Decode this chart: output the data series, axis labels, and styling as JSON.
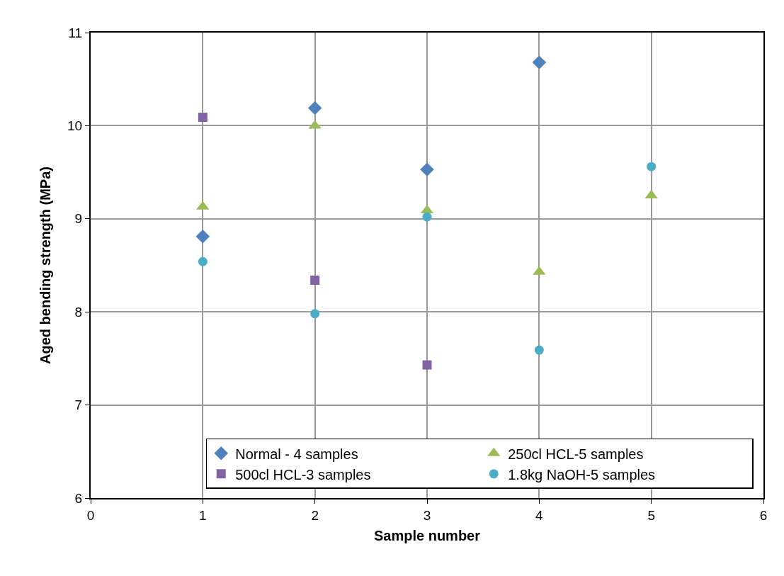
{
  "chart_data": {
    "type": "scatter",
    "xlabel": "Sample number",
    "ylabel": "Aged bending strength (MPa)",
    "xlim": [
      0,
      6
    ],
    "xticks": [
      0,
      1,
      2,
      3,
      4,
      5,
      6
    ],
    "ylim": [
      6,
      11
    ],
    "yticks": [
      6,
      7,
      8,
      9,
      10,
      11
    ],
    "grid": true,
    "legend": "bottom right",
    "series": [
      {
        "name": "Normal - 4 samples",
        "color": "#4f81bd",
        "marker": "diamond",
        "x": [
          1,
          2,
          3,
          4
        ],
        "values": [
          8.81,
          10.19,
          9.53,
          10.68
        ]
      },
      {
        "name": "250cl HCL-5 samples",
        "color": "#9bbb59",
        "marker": "triangle",
        "x": [
          1,
          2,
          3,
          4,
          5
        ],
        "values": [
          9.13,
          10.0,
          9.09,
          8.43,
          9.25
        ]
      },
      {
        "name": "500cl HCL-3 samples",
        "color": "#8064a2",
        "marker": "square",
        "x": [
          1,
          2,
          3
        ],
        "values": [
          10.09,
          8.34,
          7.43
        ]
      },
      {
        "name": "1.8kg NaOH-5 samples",
        "color": "#4bacc6",
        "marker": "circle",
        "x": [
          1,
          2,
          3,
          4,
          5
        ],
        "values": [
          8.54,
          7.98,
          9.02,
          7.59,
          9.56
        ]
      }
    ]
  }
}
